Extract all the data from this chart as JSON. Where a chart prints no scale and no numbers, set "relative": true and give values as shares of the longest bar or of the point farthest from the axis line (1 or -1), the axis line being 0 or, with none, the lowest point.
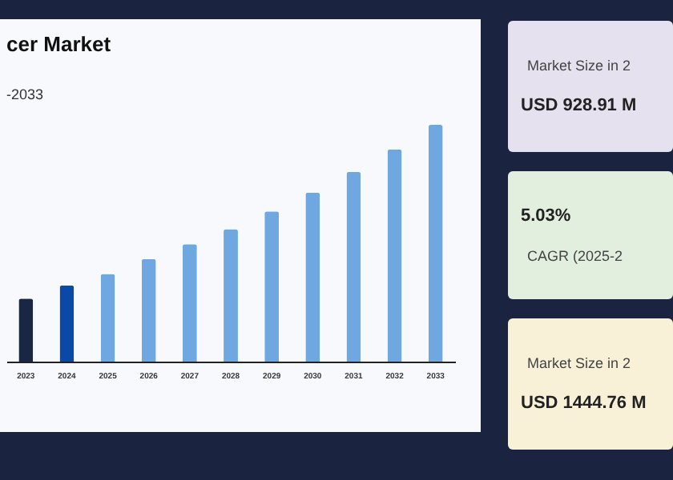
{
  "chart_data": [
    {
      "type": "bar",
      "title": "cer Market",
      "subtitle": "-2033",
      "categories": [
        "2023",
        "2024",
        "2025",
        "2026",
        "2027",
        "2028",
        "2029",
        "2030",
        "2031",
        "2032",
        "2033"
      ],
      "values": [
        0.266,
        0.322,
        0.37,
        0.433,
        0.496,
        0.559,
        0.634,
        0.714,
        0.801,
        0.896,
        1
      ],
      "colors": [
        "#1a2744",
        "#0a4aa6",
        "#6fa8e0",
        "#6fa8e0",
        "#6fa8e0",
        "#6fa8e0",
        "#6fa8e0",
        "#6fa8e0",
        "#6fa8e0",
        "#6fa8e0",
        "#6fa8e0"
      ],
      "relative": true
    },
    {
      "type": "other",
      "subtitle": "Market Size in 2",
      "title": "USD 928.91 M"
    },
    {
      "type": "other",
      "title": "5.03%",
      "subtitle": "CAGR (2025-2"
    },
    {
      "type": "other",
      "subtitle": "Market Size in 2",
      "title": "USD 1444.76 M"
    }
  ]
}
